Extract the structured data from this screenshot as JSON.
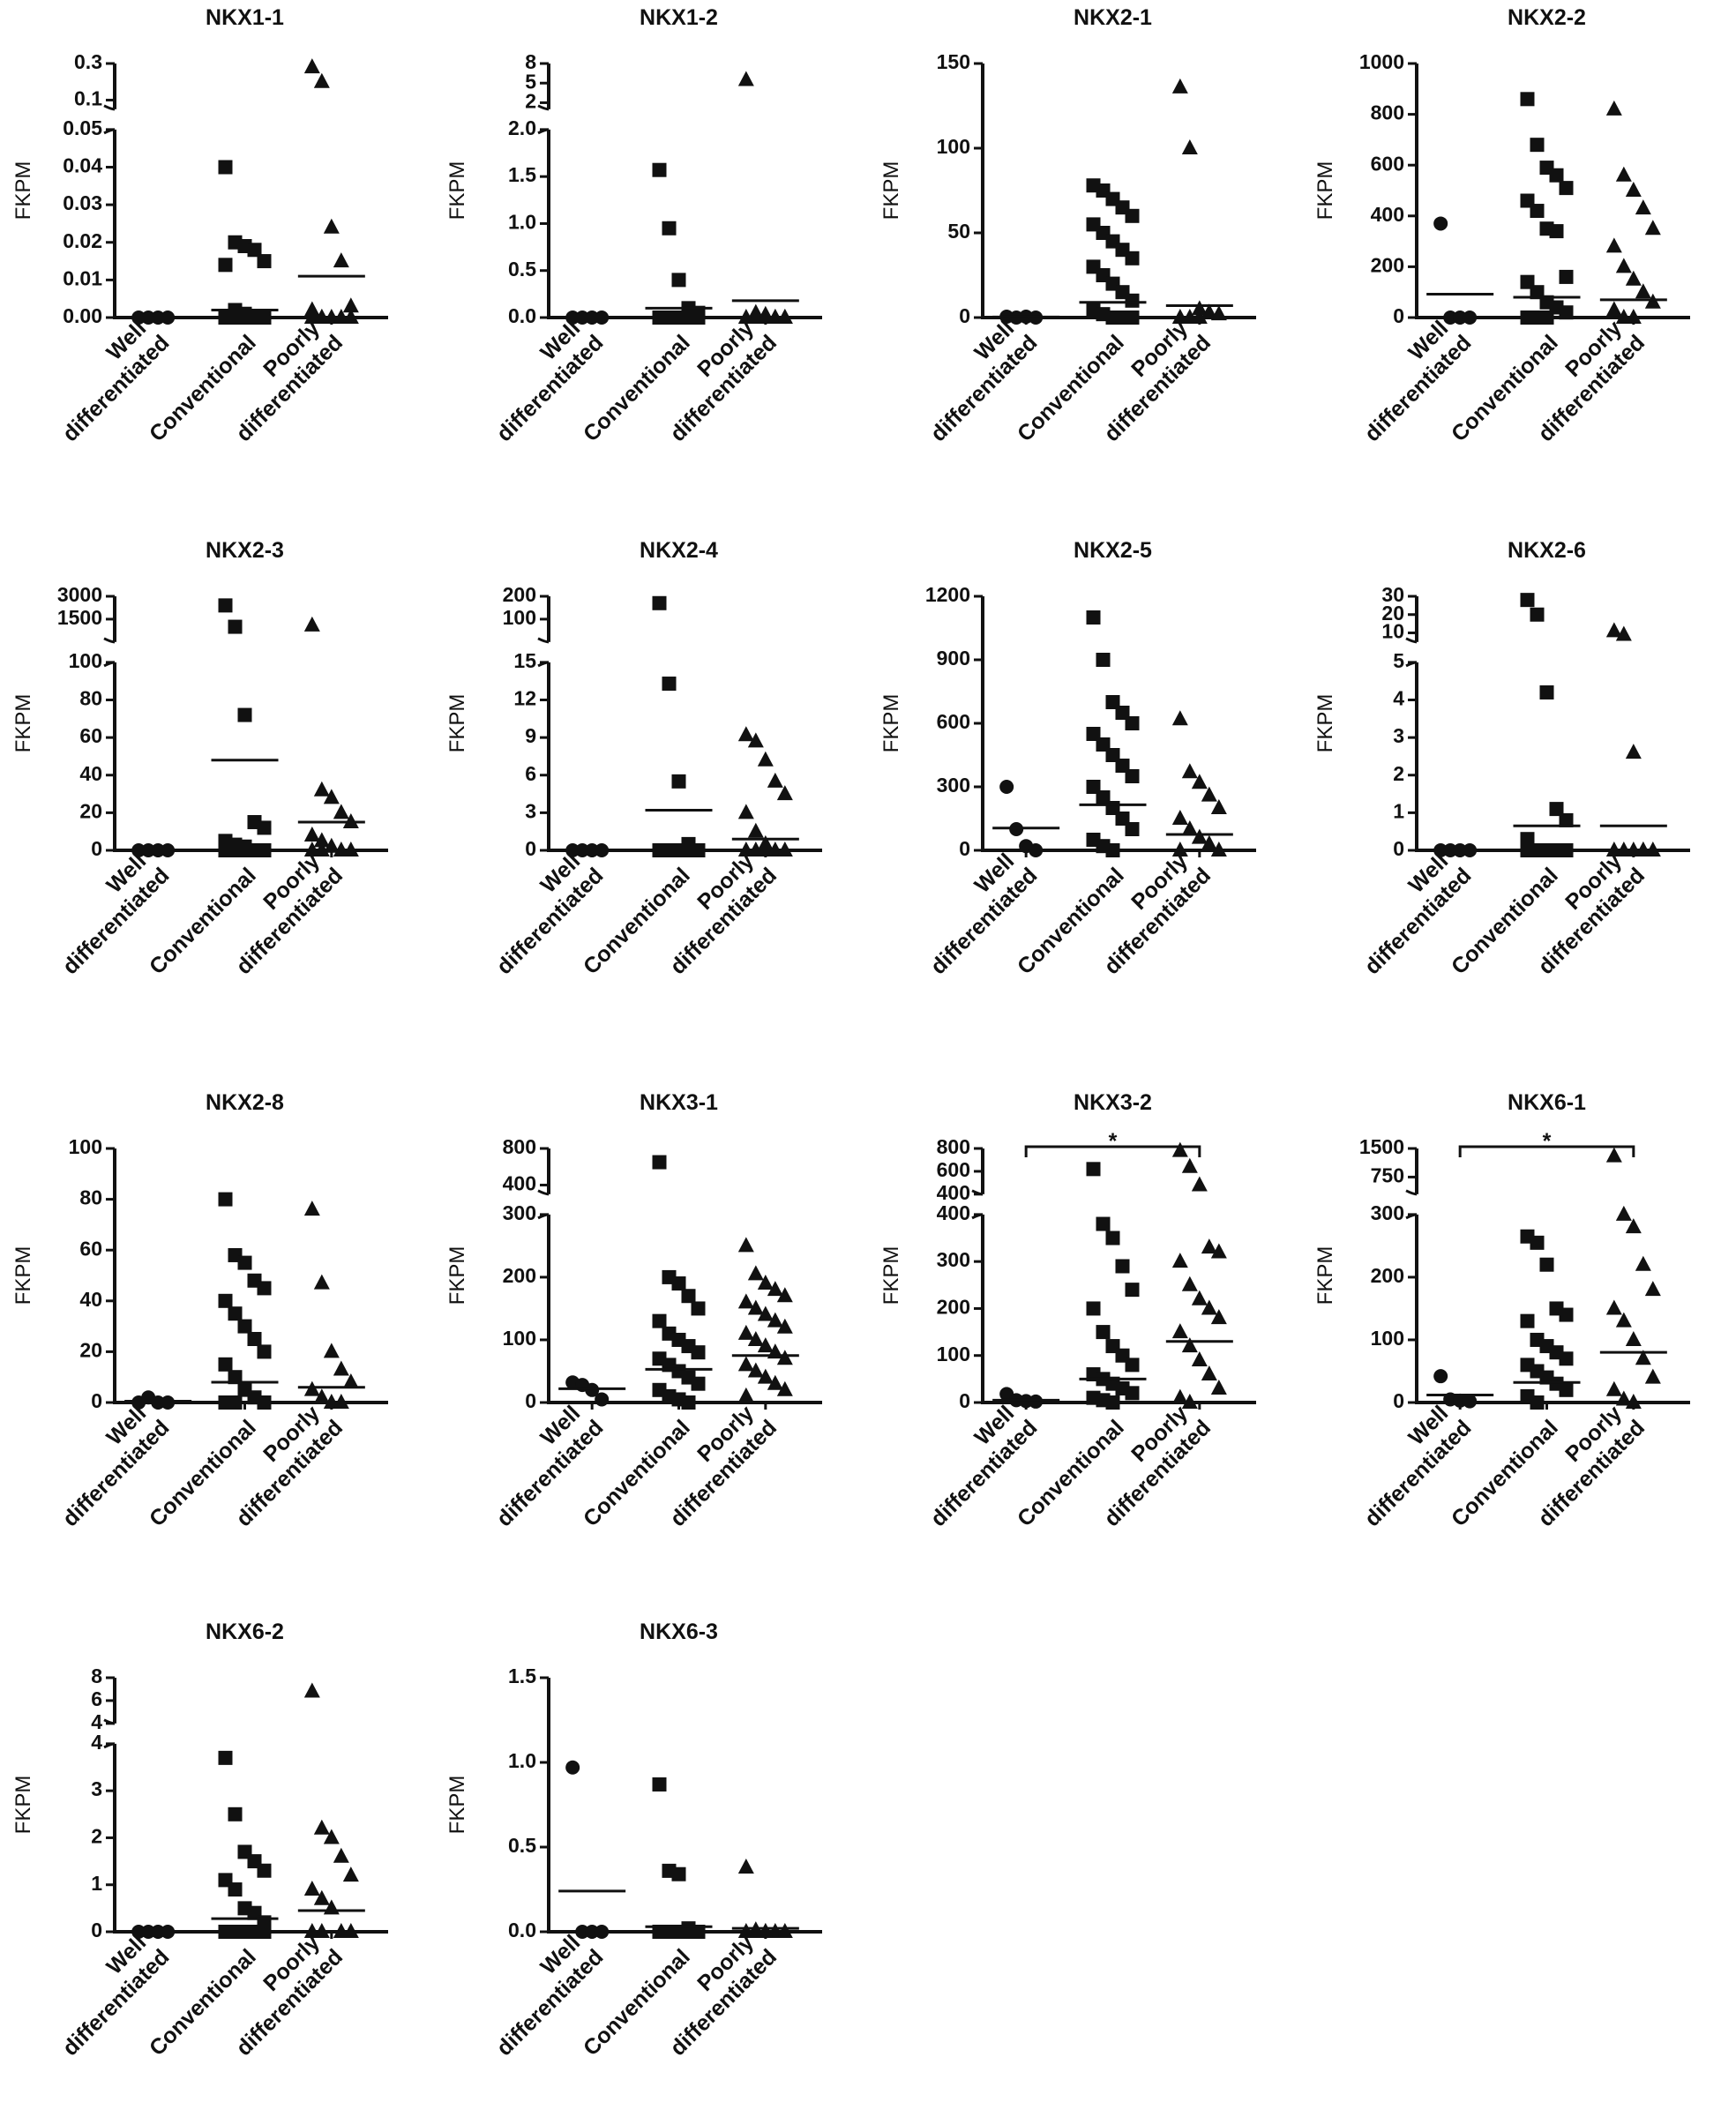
{
  "chart_data": [
    {
      "type": "dot",
      "title": "NKX1-1",
      "ylabel": "FKPM",
      "categories": [
        "Well differentiated",
        "Conventional",
        "Poorly differentiated"
      ],
      "markers": [
        "circle",
        "square",
        "triangle"
      ],
      "color": "#111111",
      "segments": [
        {
          "ylim": [
            0,
            0.05
          ],
          "yticks": [
            {
              "value": 0,
              "label": "0.00"
            },
            {
              "value": 0.01,
              "label": "0.01"
            },
            {
              "value": 0.02,
              "label": "0.02"
            },
            {
              "value": 0.03,
              "label": "0.03"
            },
            {
              "value": 0.04,
              "label": "0.04"
            },
            {
              "value": 0.05,
              "label": "0.05"
            }
          ]
        },
        {
          "ylim": [
            0.05,
            0.3
          ],
          "yticks": [
            0.1,
            0.3
          ]
        }
      ],
      "values": [
        [
          0,
          0,
          0,
          0
        ],
        [
          0.04,
          0.02,
          0.019,
          0.018,
          0.015,
          0.014,
          0.002,
          0.001,
          0,
          0,
          0,
          0,
          0,
          0,
          0
        ],
        [
          0.28,
          0.2,
          0.024,
          0.015,
          0.003,
          0.002,
          0,
          0,
          0,
          0,
          0,
          0
        ]
      ],
      "means": [
        0,
        0.002,
        0.011
      ]
    },
    {
      "type": "dot",
      "title": "NKX1-2",
      "ylabel": "FKPM",
      "categories": [
        "Well differentiated",
        "Conventional",
        "Poorly differentiated"
      ],
      "markers": [
        "circle",
        "square",
        "triangle"
      ],
      "color": "#111111",
      "segments": [
        {
          "ylim": [
            0,
            2
          ],
          "yticks": [
            {
              "value": 0,
              "label": "0.0"
            },
            0.5,
            {
              "value": 1,
              "label": "1.0"
            },
            1.5,
            {
              "value": 2,
              "label": "2.0"
            }
          ]
        },
        {
          "ylim": [
            1,
            8
          ],
          "yticks": [
            2,
            5,
            8
          ]
        }
      ],
      "values": [
        [
          0,
          0,
          0,
          0
        ],
        [
          1.57,
          0.95,
          0.4,
          0.1,
          0.05,
          0,
          0,
          0,
          0,
          0,
          0,
          0
        ],
        [
          5.5,
          0.05,
          0.03,
          0,
          0,
          0,
          0,
          0,
          0,
          0
        ]
      ],
      "means": [
        0,
        0.1,
        0.18
      ]
    },
    {
      "type": "dot",
      "title": "NKX2-1",
      "ylabel": "FKPM",
      "categories": [
        "Well differentiated",
        "Conventional",
        "Poorly differentiated"
      ],
      "markers": [
        "circle",
        "square",
        "triangle"
      ],
      "color": "#111111",
      "segments": [
        {
          "ylim": [
            0,
            150
          ],
          "yticks": [
            0,
            50,
            100,
            150
          ]
        }
      ],
      "values": [
        [
          0.5,
          0,
          0.5,
          0
        ],
        [
          78,
          75,
          70,
          65,
          60,
          55,
          50,
          45,
          40,
          35,
          30,
          25,
          20,
          15,
          10,
          5,
          2,
          0,
          0,
          0
        ],
        [
          136,
          100,
          5,
          3,
          2,
          0,
          0,
          0
        ]
      ],
      "means": [
        0.3,
        9,
        7
      ]
    },
    {
      "type": "dot",
      "title": "NKX2-2",
      "ylabel": "FKPM",
      "categories": [
        "Well differentiated",
        "Conventional",
        "Poorly differentiated"
      ],
      "markers": [
        "circle",
        "square",
        "triangle"
      ],
      "color": "#111111",
      "segments": [
        {
          "ylim": [
            0,
            1000
          ],
          "yticks": [
            0,
            200,
            400,
            600,
            800,
            1000
          ]
        }
      ],
      "values": [
        [
          370,
          0,
          0,
          0
        ],
        [
          860,
          680,
          590,
          560,
          510,
          460,
          420,
          350,
          340,
          160,
          140,
          100,
          60,
          40,
          20,
          0,
          0,
          0
        ],
        [
          820,
          560,
          500,
          430,
          350,
          280,
          200,
          150,
          100,
          60,
          30,
          0,
          0
        ]
      ],
      "means": [
        92,
        80,
        70
      ]
    },
    {
      "type": "dot",
      "title": "NKX2-3",
      "ylabel": "FKPM",
      "categories": [
        "Well differentiated",
        "Conventional",
        "Poorly differentiated"
      ],
      "markers": [
        "circle",
        "square",
        "triangle"
      ],
      "color": "#111111",
      "segments": [
        {
          "ylim": [
            0,
            100
          ],
          "yticks": [
            0,
            20,
            40,
            60,
            80,
            100
          ]
        },
        {
          "ylim": [
            0,
            3000
          ],
          "yticks": [
            1500,
            3000
          ]
        }
      ],
      "values": [
        [
          0,
          0,
          0,
          0
        ],
        [
          2400,
          1000,
          72,
          15,
          12,
          5,
          3,
          2,
          0,
          0,
          0,
          0,
          0
        ],
        [
          1100,
          32,
          28,
          20,
          15,
          8,
          5,
          2,
          0,
          0,
          0,
          0
        ]
      ],
      "means": [
        0,
        48,
        15
      ]
    },
    {
      "type": "dot",
      "title": "NKX2-4",
      "ylabel": "FKPM",
      "categories": [
        "Well differentiated",
        "Conventional",
        "Poorly differentiated"
      ],
      "markers": [
        "circle",
        "square",
        "triangle"
      ],
      "color": "#111111",
      "segments": [
        {
          "ylim": [
            0,
            15
          ],
          "yticks": [
            0,
            3,
            6,
            9,
            12,
            15
          ]
        },
        {
          "ylim": [
            0,
            200
          ],
          "yticks": [
            100,
            200
          ]
        }
      ],
      "values": [
        [
          0,
          0,
          0,
          0
        ],
        [
          170,
          13.3,
          5.5,
          0.5,
          0,
          0,
          0,
          0,
          0,
          0
        ],
        [
          9.2,
          8.7,
          7.2,
          5.5,
          4.5,
          3,
          1.5,
          0.5,
          0,
          0,
          0,
          0,
          0
        ]
      ],
      "means": [
        0,
        3.2,
        0.9
      ]
    },
    {
      "type": "dot",
      "title": "NKX2-5",
      "ylabel": "FKPM",
      "categories": [
        "Well differentiated",
        "Conventional",
        "Poorly differentiated"
      ],
      "markers": [
        "circle",
        "square",
        "triangle"
      ],
      "color": "#111111",
      "segments": [
        {
          "ylim": [
            0,
            1200
          ],
          "yticks": [
            0,
            300,
            600,
            900,
            1200
          ]
        }
      ],
      "values": [
        [
          300,
          100,
          20,
          0
        ],
        [
          1100,
          900,
          700,
          650,
          600,
          550,
          500,
          450,
          400,
          350,
          300,
          250,
          200,
          150,
          100,
          50,
          20,
          0
        ],
        [
          620,
          370,
          320,
          260,
          200,
          150,
          100,
          60,
          30,
          0,
          0
        ]
      ],
      "means": [
        105,
        215,
        75
      ]
    },
    {
      "type": "dot",
      "title": "NKX2-6",
      "ylabel": "FKPM",
      "categories": [
        "Well differentiated",
        "Conventional",
        "Poorly differentiated"
      ],
      "markers": [
        "circle",
        "square",
        "triangle"
      ],
      "color": "#111111",
      "segments": [
        {
          "ylim": [
            0,
            5
          ],
          "yticks": [
            0,
            1,
            2,
            3,
            4,
            5
          ]
        },
        {
          "ylim": [
            5,
            30
          ],
          "yticks": [
            10,
            20,
            30
          ]
        }
      ],
      "values": [
        [
          0,
          0,
          0,
          0
        ],
        [
          28,
          20,
          4.2,
          1.1,
          0.8,
          0.3,
          0,
          0,
          0,
          0,
          0,
          0
        ],
        [
          11,
          9,
          2.6,
          0,
          0,
          0,
          0,
          0,
          0
        ]
      ],
      "means": [
        0,
        0.65,
        0.65
      ]
    },
    {
      "type": "dot",
      "title": "NKX2-8",
      "ylabel": "FKPM",
      "categories": [
        "Well differentiated",
        "Conventional",
        "Poorly differentiated"
      ],
      "markers": [
        "circle",
        "square",
        "triangle"
      ],
      "color": "#111111",
      "segments": [
        {
          "ylim": [
            0,
            100
          ],
          "yticks": [
            0,
            20,
            40,
            60,
            80,
            100
          ]
        }
      ],
      "values": [
        [
          0,
          2,
          0,
          0
        ],
        [
          80,
          58,
          55,
          48,
          45,
          40,
          35,
          30,
          25,
          20,
          15,
          10,
          5,
          2,
          0,
          0,
          0
        ],
        [
          76,
          47,
          20,
          13,
          8,
          5,
          2,
          0,
          0
        ]
      ],
      "means": [
        0.5,
        8,
        6
      ]
    },
    {
      "type": "dot",
      "title": "NKX3-1",
      "ylabel": "FKPM",
      "categories": [
        "Well differentiated",
        "Conventional",
        "Poorly differentiated"
      ],
      "markers": [
        "circle",
        "square",
        "triangle"
      ],
      "color": "#111111",
      "segments": [
        {
          "ylim": [
            0,
            300
          ],
          "yticks": [
            0,
            100,
            200,
            300
          ]
        },
        {
          "ylim": [
            300,
            800
          ],
          "yticks": [
            400,
            800
          ]
        }
      ],
      "values": [
        [
          32,
          28,
          20,
          5
        ],
        [
          650,
          200,
          190,
          170,
          150,
          130,
          110,
          100,
          90,
          80,
          70,
          60,
          50,
          40,
          30,
          20,
          10,
          5,
          0
        ],
        [
          250,
          205,
          190,
          180,
          170,
          160,
          150,
          140,
          130,
          120,
          110,
          100,
          90,
          80,
          70,
          60,
          50,
          40,
          30,
          20,
          10
        ]
      ],
      "means": [
        22,
        53,
        75
      ]
    },
    {
      "type": "dot",
      "title": "NKX3-2",
      "ylabel": "FKPM",
      "categories": [
        "Well differentiated",
        "Conventional",
        "Poorly differentiated"
      ],
      "markers": [
        "circle",
        "square",
        "triangle"
      ],
      "color": "#111111",
      "segments": [
        {
          "ylim": [
            0,
            400
          ],
          "yticks": [
            0,
            100,
            200,
            300,
            400
          ]
        },
        {
          "ylim": [
            400,
            800
          ],
          "yticks": [
            400,
            600,
            800
          ]
        }
      ],
      "values": [
        [
          18,
          5,
          3,
          2
        ],
        [
          620,
          380,
          350,
          290,
          240,
          200,
          150,
          120,
          100,
          80,
          60,
          50,
          40,
          30,
          20,
          10,
          5,
          0
        ],
        [
          780,
          640,
          480,
          330,
          320,
          300,
          250,
          220,
          200,
          180,
          150,
          120,
          90,
          60,
          30,
          10,
          0
        ]
      ],
      "means": [
        5,
        50,
        130
      ],
      "significance": {
        "label": "*",
        "groups": [
          0,
          2
        ]
      }
    },
    {
      "type": "dot",
      "title": "NKX6-1",
      "ylabel": "FKPM",
      "categories": [
        "Well differentiated",
        "Conventional",
        "Poorly differentiated"
      ],
      "markers": [
        "circle",
        "square",
        "triangle"
      ],
      "color": "#111111",
      "segments": [
        {
          "ylim": [
            0,
            300
          ],
          "yticks": [
            0,
            100,
            200,
            300
          ]
        },
        {
          "ylim": [
            300,
            1500
          ],
          "yticks": [
            750,
            1500
          ]
        }
      ],
      "values": [
        [
          42,
          5,
          3,
          2
        ],
        [
          265,
          255,
          220,
          150,
          140,
          130,
          100,
          90,
          80,
          70,
          60,
          50,
          40,
          30,
          20,
          10,
          0
        ],
        [
          1300,
          300,
          280,
          220,
          180,
          150,
          130,
          100,
          70,
          40,
          20,
          5,
          0
        ]
      ],
      "means": [
        12,
        32,
        80
      ],
      "significance": {
        "label": "*",
        "groups": [
          0,
          2
        ]
      }
    },
    {
      "type": "dot",
      "title": "NKX6-2",
      "ylabel": "FKPM",
      "categories": [
        "Well differentiated",
        "Conventional",
        "Poorly differentiated"
      ],
      "markers": [
        "circle",
        "square",
        "triangle"
      ],
      "color": "#111111",
      "segments": [
        {
          "ylim": [
            0,
            4
          ],
          "yticks": [
            0,
            1,
            2,
            3,
            4
          ]
        },
        {
          "ylim": [
            4,
            8
          ],
          "yticks": [
            4,
            6,
            8
          ]
        }
      ],
      "values": [
        [
          0,
          0,
          0,
          0
        ],
        [
          3.7,
          2.5,
          1.7,
          1.5,
          1.3,
          1.1,
          0.9,
          0.5,
          0.4,
          0.2,
          0,
          0,
          0,
          0,
          0
        ],
        [
          6.8,
          2.2,
          2,
          1.6,
          1.2,
          0.9,
          0.7,
          0.5,
          0,
          0,
          0,
          0
        ]
      ],
      "means": [
        0,
        0.28,
        0.45
      ]
    },
    {
      "type": "dot",
      "title": "NKX6-3",
      "ylabel": "FKPM",
      "categories": [
        "Well differentiated",
        "Conventional",
        "Poorly differentiated"
      ],
      "markers": [
        "circle",
        "square",
        "triangle"
      ],
      "color": "#111111",
      "segments": [
        {
          "ylim": [
            0,
            1.5
          ],
          "yticks": [
            {
              "value": 0,
              "label": "0.0"
            },
            0.5,
            {
              "value": 1,
              "label": "1.0"
            },
            1.5
          ]
        }
      ],
      "values": [
        [
          0.97,
          0,
          0,
          0
        ],
        [
          0.87,
          0.36,
          0.34,
          0.02,
          0,
          0,
          0,
          0,
          0,
          0
        ],
        [
          0.38,
          0.01,
          0,
          0,
          0,
          0,
          0,
          0
        ]
      ],
      "means": [
        0.24,
        0.03,
        0.02
      ]
    }
  ]
}
